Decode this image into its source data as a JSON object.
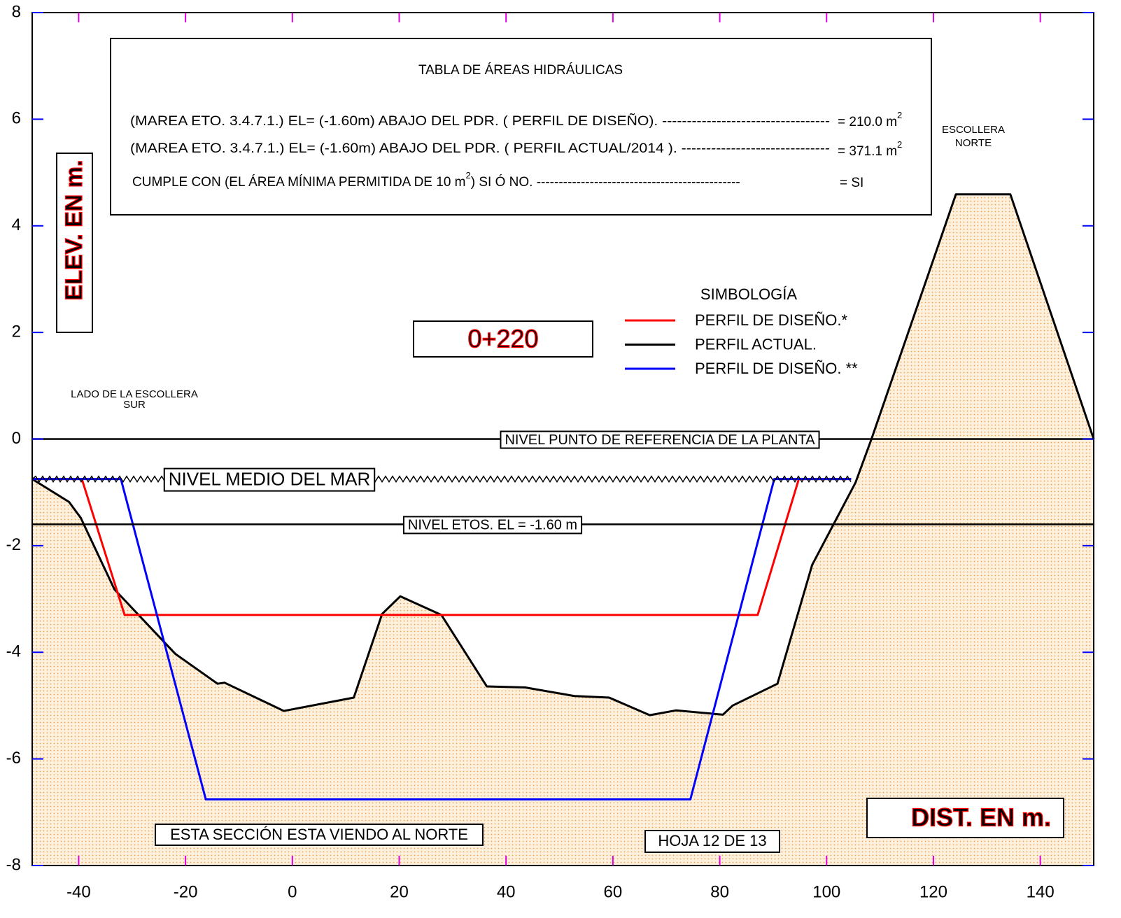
{
  "chart_data": {
    "type": "line",
    "xlim": [
      -48.7,
      150
    ],
    "ylim": [
      -8,
      8
    ],
    "xticks": [
      -40,
      -20,
      0,
      20,
      40,
      60,
      80,
      100,
      120,
      140
    ],
    "yticks": [
      -8,
      -6,
      -4,
      -2,
      0,
      2,
      4,
      6,
      8
    ],
    "legend_title": "SIMBOLOGÍA",
    "series": [
      {
        "name": "PERFIL DE DISEÑO.*",
        "color": "#ff0000",
        "x": [
          -48.7,
          -39.4,
          -31.4,
          87.1,
          94.8,
          104.6
        ],
        "y": [
          -0.75,
          -0.75,
          -3.3,
          -3.3,
          -0.75,
          -0.75
        ]
      },
      {
        "name": "PERFIL ACTUAL.",
        "color": "#000000",
        "fill": true,
        "x": [
          -48.7,
          -41.8,
          -39.6,
          -33.3,
          -21.9,
          -14.0,
          -12.7,
          -1.6,
          11.5,
          16.8,
          20.2,
          27.9,
          36.4,
          43.6,
          52.8,
          59.3,
          66.9,
          71.8,
          80.6,
          82.4,
          90.8,
          97.3,
          105.4,
          108.4,
          124.2,
          134.4,
          150
        ],
        "y": [
          -0.75,
          -1.18,
          -1.48,
          -2.82,
          -4.03,
          -4.59,
          -4.57,
          -5.1,
          -4.85,
          -3.28,
          -2.95,
          -3.3,
          -4.64,
          -4.66,
          -4.82,
          -4.85,
          -5.18,
          -5.09,
          -5.17,
          -5.0,
          -4.59,
          -2.36,
          -0.82,
          0,
          4.59,
          4.59,
          0
        ]
      },
      {
        "name": "PERFIL DE DISEÑO. **",
        "color": "#0000ff",
        "x": [
          -48.7,
          -32.1,
          -16.2,
          74.5,
          90.2,
          104.6
        ],
        "y": [
          -0.75,
          -0.75,
          -6.76,
          -6.76,
          -0.75,
          -0.75
        ]
      }
    ],
    "hlines": [
      {
        "y": 0,
        "label": "NIVEL PUNTO DE REFERENCIA DE LA PLANTA"
      },
      {
        "y": -1.6,
        "label": "NIVEL ETOS. EL = -1.60 m"
      },
      {
        "y": -0.75,
        "label": "NIVEL MEDIO DEL MAR",
        "x": [
          -48.7,
          104.6
        ],
        "style": "zigzag"
      }
    ],
    "table": {
      "title": "TABLA DE ÁREAS HIDRÁULICAS",
      "rows": [
        {
          "text": "(MAREA ETO. 3.4.7.1.) EL= (-1.60m) ABAJO DEL PDR. ( PERFIL DE DISEÑO). ----------------------------------",
          "value": "= 210.0 m",
          "sup": "2"
        },
        {
          "text": "(MAREA ETO. 3.4.7.1.) EL= (-1.60m) ABAJO DEL PDR. ( PERFIL ACTUAL/2014 ). ------------------------------",
          "value": "= 371.1 m",
          "sup": "2"
        },
        {
          "text": "CUMPLE CON (EL ÁREA MÍNIMA PERMITIDA DE 10 m",
          "sup": "2",
          "text2": ") SI Ó NO. ----------------------------------------------",
          "value": "=  SI"
        }
      ]
    },
    "annotations": [
      {
        "lines": [
          "ELEV. EN m."
        ]
      },
      {
        "lines": [
          "0+220"
        ]
      },
      {
        "lines": [
          "LADO DE LA ESCOLLERA",
          "SUR"
        ]
      },
      {
        "lines": [
          "ESCOLLERA",
          "NORTE"
        ]
      },
      {
        "lines": [
          "ESTA SECCIÓN ESTA VIENDO AL NORTE"
        ]
      },
      {
        "lines": [
          "HOJA 12 DE 13"
        ]
      },
      {
        "lines": [
          "DIST. EN m."
        ]
      }
    ]
  }
}
